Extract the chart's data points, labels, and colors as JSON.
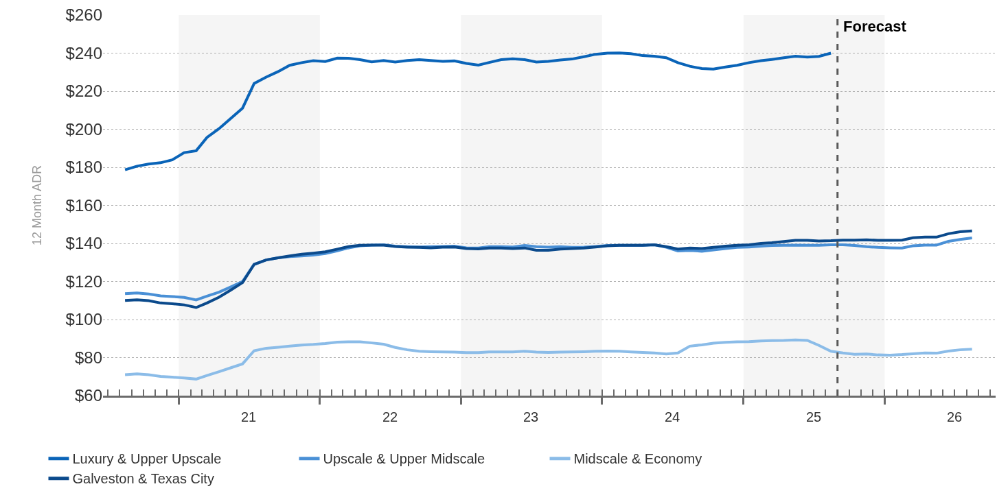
{
  "chart_data": {
    "type": "line",
    "ylabel": "12 Month ADR",
    "x": [
      "2020-08-15",
      "2020-09-15",
      "2020-10-15",
      "2020-11-15",
      "2020-12-15",
      "2021-01-15",
      "2021-02-15",
      "2021-03-15",
      "2021-04-15",
      "2021-05-15",
      "2021-06-15",
      "2021-07-15",
      "2021-08-15",
      "2021-09-15",
      "2021-10-15",
      "2021-11-15",
      "2021-12-15",
      "2022-01-15",
      "2022-02-15",
      "2022-03-15",
      "2022-04-15",
      "2022-05-15",
      "2022-06-15",
      "2022-07-15",
      "2022-08-15",
      "2022-09-15",
      "2022-10-15",
      "2022-11-15",
      "2022-12-15",
      "2023-01-15",
      "2023-02-15",
      "2023-03-15",
      "2023-04-15",
      "2023-05-15",
      "2023-06-15",
      "2023-07-15",
      "2023-08-15",
      "2023-09-15",
      "2023-10-15",
      "2023-11-15",
      "2023-12-15",
      "2024-01-15",
      "2024-02-15",
      "2024-03-15",
      "2024-04-15",
      "2024-05-15",
      "2024-06-15",
      "2024-07-15",
      "2024-08-15",
      "2024-09-15",
      "2024-10-15",
      "2024-11-15",
      "2024-12-15",
      "2025-01-15",
      "2025-02-15",
      "2025-03-15",
      "2025-04-15",
      "2025-05-15",
      "2025-06-15",
      "2025-07-15",
      "2025-08-15",
      "2025-09-15",
      "2025-10-15",
      "2025-11-15",
      "2025-12-15",
      "2026-01-15",
      "2026-02-15",
      "2026-03-15",
      "2026-04-15",
      "2026-05-15",
      "2026-06-15",
      "2026-07-15",
      "2026-08-15"
    ],
    "series": [
      {
        "name": "Luxury & Upper Upscale",
        "color": "#0a64b8",
        "values": [
          178.7,
          180.6,
          181.7,
          182.4,
          183.9,
          187.7,
          188.7,
          195.7,
          200.3,
          205.6,
          211.1,
          224.1,
          227.4,
          230.3,
          233.6,
          235.0,
          236.0,
          235.6,
          237.4,
          237.3,
          236.6,
          235.4,
          236.1,
          235.3,
          236.1,
          236.6,
          236.1,
          235.7,
          235.9,
          234.6,
          233.7,
          235.1,
          236.6,
          237.0,
          236.6,
          235.3,
          235.7,
          236.4,
          236.9,
          238.1,
          239.4,
          240.0,
          240.1,
          239.7,
          238.7,
          238.4,
          237.6,
          235.0,
          233.1,
          231.9,
          231.6,
          232.7,
          233.6,
          235.0,
          236.0,
          236.7,
          237.6,
          238.4,
          237.9,
          238.3,
          240.0,
          null,
          null,
          null,
          null,
          null,
          null,
          null,
          null,
          null,
          null,
          null,
          null
        ]
      },
      {
        "name": "Upscale & Upper Midscale",
        "color": "#4a90d6",
        "values": [
          113.6,
          114.0,
          113.4,
          112.4,
          112.1,
          111.6,
          110.3,
          112.3,
          114.4,
          117.1,
          120.0,
          129.0,
          131.3,
          132.4,
          133.1,
          133.4,
          133.9,
          134.7,
          136.1,
          137.6,
          138.7,
          139.1,
          139.3,
          138.6,
          138.3,
          138.1,
          138.3,
          138.4,
          138.6,
          137.7,
          137.6,
          138.3,
          138.3,
          138.1,
          138.9,
          138.3,
          138.0,
          138.3,
          137.9,
          138.0,
          138.4,
          138.9,
          139.0,
          139.0,
          139.0,
          139.3,
          138.0,
          136.0,
          136.3,
          135.9,
          136.6,
          137.3,
          137.9,
          138.1,
          138.6,
          138.9,
          139.0,
          139.1,
          139.0,
          139.0,
          139.3,
          139.3,
          138.9,
          138.3,
          137.9,
          137.7,
          137.6,
          138.7,
          139.1,
          139.1,
          141.1,
          142.1,
          142.9
        ]
      },
      {
        "name": "Midscale & Economy",
        "color": "#8bbce8",
        "values": [
          71.0,
          71.4,
          71.0,
          70.1,
          69.7,
          69.3,
          68.7,
          70.6,
          72.6,
          74.6,
          76.7,
          83.6,
          84.9,
          85.4,
          86.0,
          86.6,
          86.9,
          87.4,
          88.1,
          88.3,
          88.3,
          87.7,
          87.0,
          85.3,
          84.1,
          83.3,
          83.1,
          83.0,
          82.9,
          82.6,
          82.6,
          83.0,
          83.0,
          83.0,
          83.3,
          82.9,
          82.7,
          82.9,
          83.0,
          83.1,
          83.3,
          83.4,
          83.3,
          83.0,
          82.7,
          82.4,
          81.9,
          82.4,
          86.0,
          86.7,
          87.6,
          88.0,
          88.3,
          88.4,
          88.7,
          88.9,
          89.0,
          89.3,
          89.0,
          86.4,
          83.3,
          82.4,
          81.7,
          81.9,
          81.4,
          81.3,
          81.6,
          82.0,
          82.4,
          82.3,
          83.4,
          84.1,
          84.4
        ]
      },
      {
        "name": "Galveston & Texas City",
        "color": "#0b4a8c",
        "values": [
          110.0,
          110.4,
          109.9,
          108.7,
          108.3,
          107.7,
          106.3,
          108.7,
          111.7,
          115.4,
          119.4,
          129.0,
          131.3,
          132.4,
          133.4,
          134.3,
          134.9,
          135.6,
          137.0,
          138.3,
          139.0,
          139.1,
          139.1,
          138.4,
          138.0,
          137.9,
          137.7,
          138.0,
          138.1,
          137.3,
          137.1,
          137.6,
          137.6,
          137.3,
          137.6,
          136.4,
          136.4,
          137.0,
          137.3,
          137.6,
          138.1,
          138.7,
          139.0,
          139.0,
          139.0,
          139.3,
          138.3,
          137.0,
          137.6,
          137.3,
          137.9,
          138.6,
          139.0,
          139.3,
          140.0,
          140.4,
          141.0,
          141.6,
          141.6,
          141.3,
          141.4,
          141.7,
          141.7,
          141.9,
          141.6,
          141.6,
          141.7,
          143.0,
          143.3,
          143.3,
          145.1,
          146.1,
          146.6
        ]
      }
    ],
    "xlim": [
      "2020-06-19",
      "2026-10-15"
    ],
    "xticks": [
      {
        "value": "2021-01-01",
        "label": null
      },
      {
        "value": "2021-07-01",
        "label": "21"
      },
      {
        "value": "2022-01-01",
        "label": null
      },
      {
        "value": "2022-07-01",
        "label": "22"
      },
      {
        "value": "2023-01-01",
        "label": null
      },
      {
        "value": "2023-07-01",
        "label": "23"
      },
      {
        "value": "2024-01-01",
        "label": null
      },
      {
        "value": "2024-07-01",
        "label": "24"
      },
      {
        "value": "2025-01-01",
        "label": null
      },
      {
        "value": "2025-07-01",
        "label": "25"
      },
      {
        "value": "2026-01-01",
        "label": null
      },
      {
        "value": "2026-07-01",
        "label": "26"
      }
    ],
    "ylim": [
      60,
      260
    ],
    "yticks": [
      {
        "value": 60,
        "label": "$60"
      },
      {
        "value": 80,
        "label": "$80"
      },
      {
        "value": 100,
        "label": "$100"
      },
      {
        "value": 120,
        "label": "$120"
      },
      {
        "value": 140,
        "label": "$140"
      },
      {
        "value": 160,
        "label": "$160"
      },
      {
        "value": 180,
        "label": "$180"
      },
      {
        "value": 200,
        "label": "$200"
      },
      {
        "value": 220,
        "label": "$220"
      },
      {
        "value": 240,
        "label": "$240"
      },
      {
        "value": 260,
        "label": "$260"
      }
    ],
    "grid": "y",
    "legend": "bottom",
    "marker": "none",
    "line_style": "solid",
    "bands": [
      {
        "axis": "x",
        "from": "2021-01-01",
        "to": "2022-01-01",
        "color": "#f5f5f5"
      },
      {
        "axis": "x",
        "from": "2023-01-01",
        "to": "2024-01-01",
        "color": "#f5f5f5"
      },
      {
        "axis": "x",
        "from": "2025-01-01",
        "to": "2026-01-01",
        "color": "#f5f5f5"
      }
    ],
    "ref_lines": [
      {
        "axis": "x",
        "value": "2025-09-01",
        "label": "Forecast",
        "color": "#595959",
        "line_style": "dashed"
      }
    ]
  }
}
